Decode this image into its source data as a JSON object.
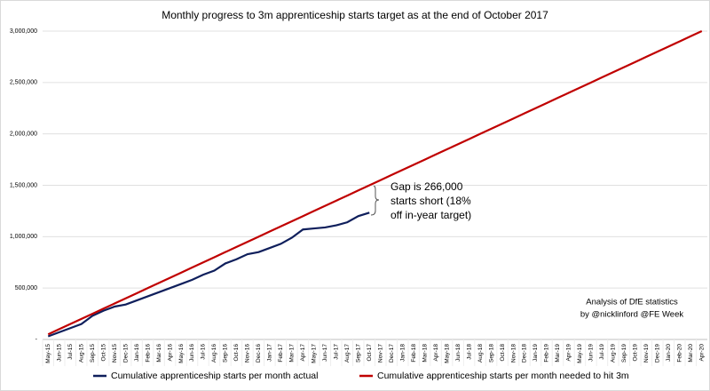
{
  "chart_data": {
    "type": "line",
    "title": "Monthly progress to 3m apprenticeship starts target as at the end of October 2017",
    "categories": [
      "May-15",
      "Jun-15",
      "Jul-15",
      "Aug-15",
      "Sep-15",
      "Oct-15",
      "Nov-15",
      "Dec-15",
      "Jan-16",
      "Feb-16",
      "Mar-16",
      "Apr-16",
      "May-16",
      "Jun-16",
      "Jul-16",
      "Aug-16",
      "Sep-16",
      "Oct-16",
      "Nov-16",
      "Dec-16",
      "Jan-17",
      "Feb-17",
      "Mar-17",
      "Apr-17",
      "May-17",
      "Jun-17",
      "Jul-17",
      "Aug-17",
      "Sep-17",
      "Oct-17",
      "Nov-17",
      "Dec-17",
      "Jan-18",
      "Feb-18",
      "Mar-18",
      "Apr-18",
      "May-18",
      "Jun-18",
      "Jul-18",
      "Aug-18",
      "Sep-18",
      "Oct-18",
      "Nov-18",
      "Dec-18",
      "Jan-19",
      "Feb-19",
      "Mar-19",
      "Apr-19",
      "May-19",
      "Jun-19",
      "Jul-19",
      "Aug-19",
      "Sep-19",
      "Oct-19",
      "Nov-19",
      "Dec-19",
      "Jan-20",
      "Feb-20",
      "Mar-20",
      "Apr-20"
    ],
    "series": [
      {
        "name": "Cumulative apprenticeship starts per month actual",
        "color": "#0f1f5c",
        "values": [
          30000,
          70000,
          110000,
          150000,
          230000,
          280000,
          320000,
          340000,
          380000,
          420000,
          460000,
          500000,
          540000,
          580000,
          630000,
          670000,
          740000,
          780000,
          830000,
          850000,
          890000,
          930000,
          990000,
          1070000,
          1080000,
          1090000,
          1110000,
          1140000,
          1200000,
          1234000,
          null,
          null,
          null,
          null,
          null,
          null,
          null,
          null,
          null,
          null,
          null,
          null,
          null,
          null,
          null,
          null,
          null,
          null,
          null,
          null,
          null,
          null,
          null,
          null,
          null,
          null,
          null,
          null,
          null,
          null
        ]
      },
      {
        "name": "Cumulative apprenticeship starts per month needed to hit 3m",
        "color": "#c00000",
        "values": [
          50000,
          100000,
          150000,
          200000,
          250000,
          300000,
          350000,
          400000,
          450000,
          500000,
          550000,
          600000,
          650000,
          700000,
          750000,
          800000,
          850000,
          900000,
          950000,
          1000000,
          1050000,
          1100000,
          1150000,
          1200000,
          1250000,
          1300000,
          1350000,
          1400000,
          1450000,
          1500000,
          1550000,
          1600000,
          1650000,
          1700000,
          1750000,
          1800000,
          1850000,
          1900000,
          1950000,
          2000000,
          2050000,
          2100000,
          2150000,
          2200000,
          2250000,
          2300000,
          2350000,
          2400000,
          2450000,
          2500000,
          2550000,
          2600000,
          2650000,
          2700000,
          2750000,
          2800000,
          2850000,
          2900000,
          2950000,
          3000000
        ]
      }
    ],
    "ylim": [
      0,
      3000000
    ],
    "yticks": [
      {
        "value": 0,
        "label": "-"
      },
      {
        "value": 500000,
        "label": "500,000"
      },
      {
        "value": 1000000,
        "label": "1,000,000"
      },
      {
        "value": 1500000,
        "label": "1,500,000"
      },
      {
        "value": 2000000,
        "label": "2,000,000"
      },
      {
        "value": 2500000,
        "label": "2,500,000"
      },
      {
        "value": 3000000,
        "label": "3,000,000"
      }
    ],
    "annotations": [
      {
        "lines": [
          "Gap is 266,000",
          "starts short (18%",
          "off in-year target)"
        ]
      },
      {
        "lines": [
          "Analysis of DfE statistics",
          "by @nicklinford @FE Week"
        ]
      }
    ]
  }
}
